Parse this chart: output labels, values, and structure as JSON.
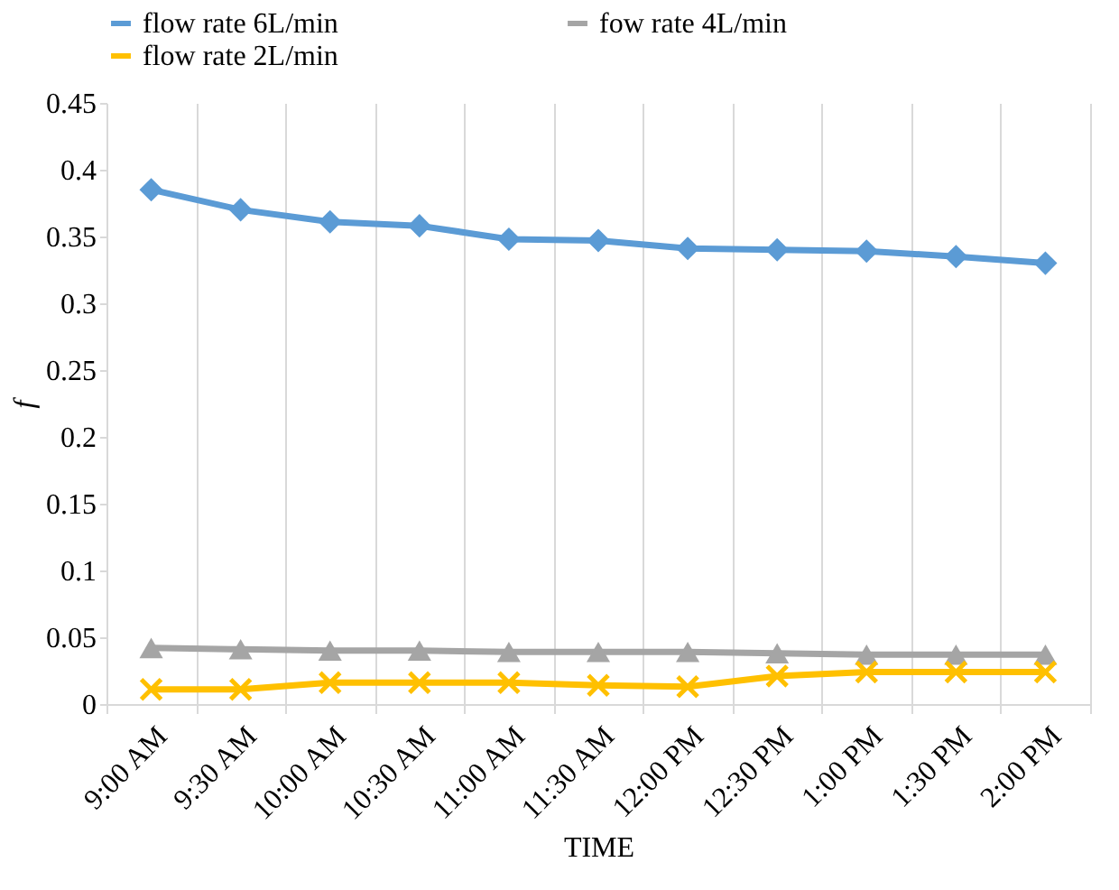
{
  "chart_data": {
    "type": "line",
    "xlabel": "TIME",
    "ylabel": "f",
    "categories": [
      "9:00 AM",
      "9:30 AM",
      "10:00 AM",
      "10:30 AM",
      "11:00 AM",
      "11:30 AM",
      "12:00 PM",
      "12:30 PM",
      "1:00 PM",
      "1:30 PM",
      "2:00 PM"
    ],
    "series": [
      {
        "name": "flow rate 6L/min",
        "color": "#5b9bd5",
        "marker": "diamond",
        "values": [
          0.385,
          0.37,
          0.361,
          0.358,
          0.348,
          0.347,
          0.341,
          0.34,
          0.339,
          0.335,
          0.33
        ]
      },
      {
        "name": "fow rate 4L/min",
        "color": "#a5a5a5",
        "marker": "triangle",
        "values": [
          0.042,
          0.041,
          0.04,
          0.04,
          0.039,
          0.039,
          0.039,
          0.038,
          0.037,
          0.037,
          0.037
        ]
      },
      {
        "name": "flow rate 2L/min",
        "color": "#ffc000",
        "marker": "cross",
        "values": [
          0.011,
          0.011,
          0.016,
          0.016,
          0.016,
          0.014,
          0.013,
          0.021,
          0.024,
          0.024,
          0.024
        ]
      }
    ],
    "ylim": [
      0,
      0.45
    ],
    "yticks": [
      0,
      0.05,
      0.1,
      0.15,
      0.2,
      0.25,
      0.3,
      0.35,
      0.4,
      0.45
    ],
    "grid": "x",
    "legend": "top",
    "line_style": "solid"
  }
}
